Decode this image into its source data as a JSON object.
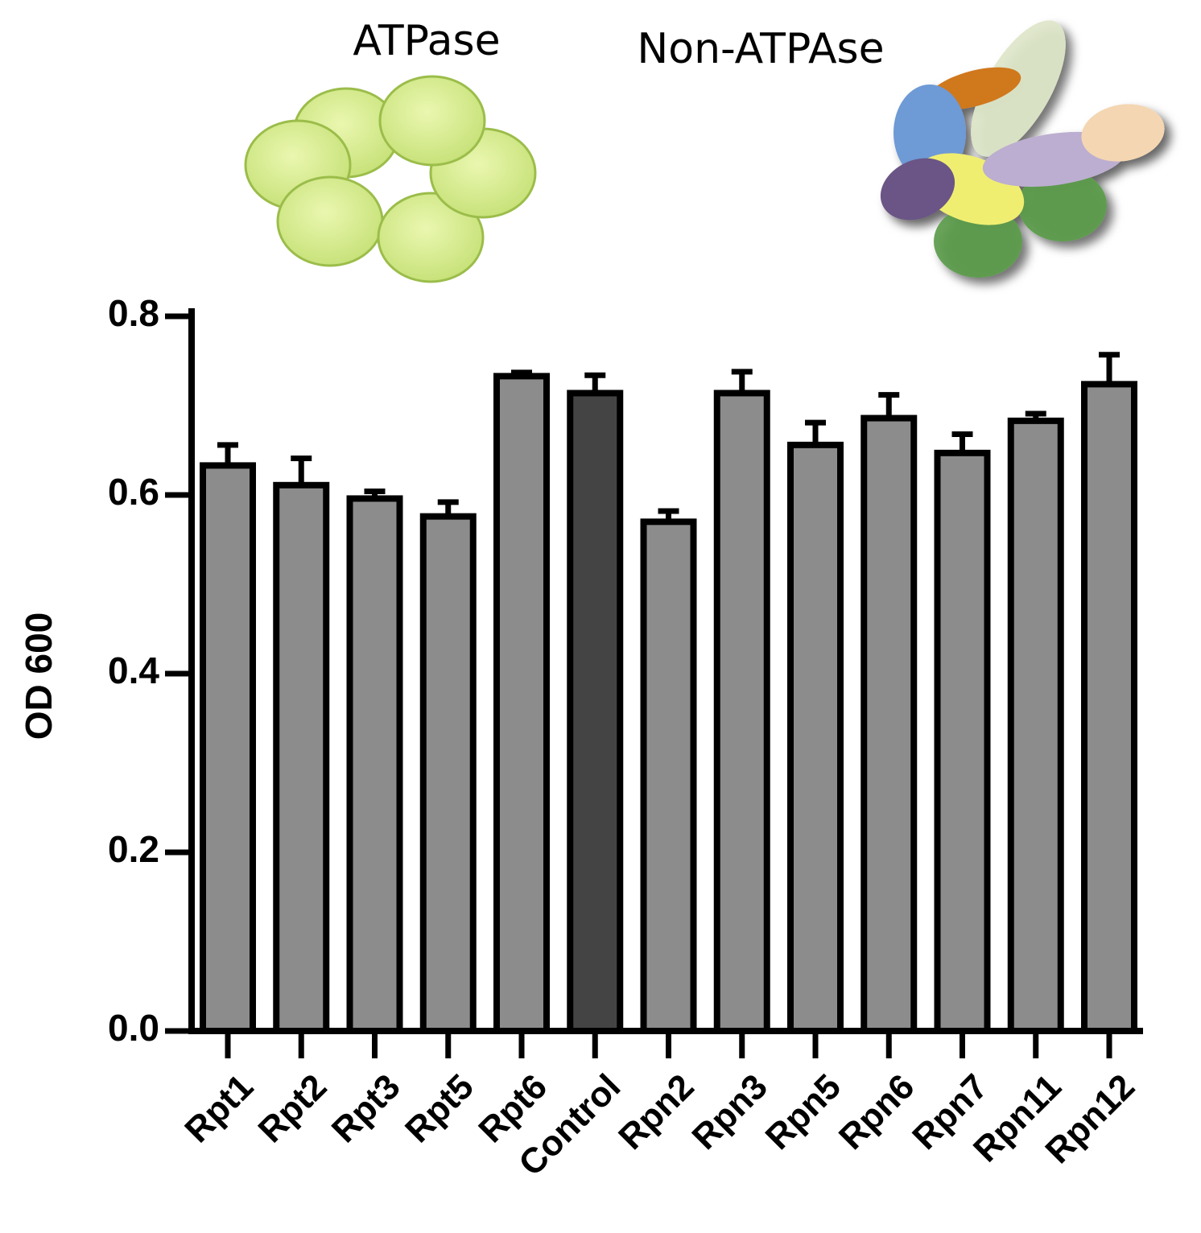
{
  "chart_data": {
    "type": "bar",
    "annotations": [
      "ATPase",
      "Non-ATPAse"
    ],
    "y_label": "OD 600",
    "categories": [
      "Rpt1",
      "Rpt2",
      "Rpt3",
      "Rpt5",
      "Rpt6",
      "Control",
      "Rpn2",
      "Rpn3",
      "Rpn5",
      "Rpn6",
      "Rpn7",
      "Rpn11",
      "Rpn12"
    ],
    "values": [
      0.633,
      0.611,
      0.596,
      0.576,
      0.733,
      0.714,
      0.57,
      0.714,
      0.656,
      0.686,
      0.647,
      0.683,
      0.724
    ],
    "errors": [
      0.023,
      0.03,
      0.008,
      0.016,
      0.004,
      0.02,
      0.012,
      0.024,
      0.025,
      0.026,
      0.021,
      0.008,
      0.033
    ],
    "colors": [
      "#8c8c8c",
      "#8c8c8c",
      "#8c8c8c",
      "#8c8c8c",
      "#8c8c8c",
      "#444444",
      "#8c8c8c",
      "#8c8c8c",
      "#8c8c8c",
      "#8c8c8c",
      "#8c8c8c",
      "#8c8c8c",
      "#8c8c8c"
    ],
    "ylim": [
      0,
      0.8
    ],
    "yticks": [
      {
        "value": 0,
        "label": "0.0"
      },
      0.2,
      0.4,
      0.6,
      0.8
    ]
  }
}
